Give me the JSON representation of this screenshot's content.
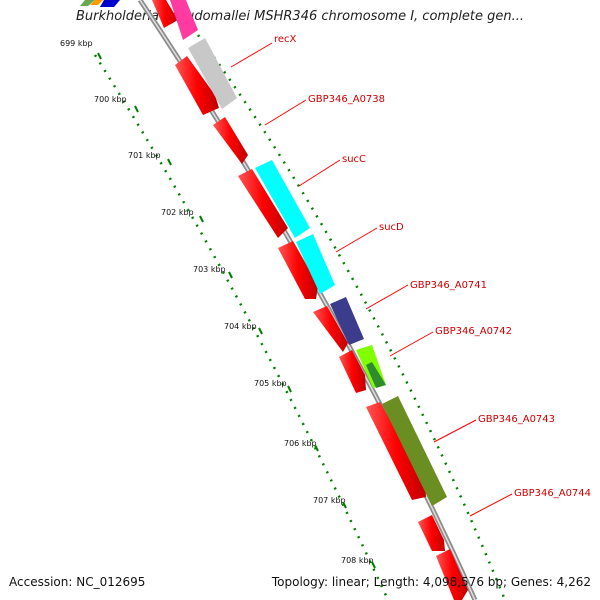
{
  "map": {
    "title": "Burkholderia pseudomallei MSHR346 chromosome I, complete gen...",
    "accession": "Accession: NC_012695",
    "summary": "Topology: linear; Length: 4,098,576 bp; Genes: 4,262"
  },
  "ruler": [
    {
      "label": "699 kbp"
    },
    {
      "label": "700 kbp"
    },
    {
      "label": "701 kbp"
    },
    {
      "label": "702 kbp"
    },
    {
      "label": "703 kbp"
    },
    {
      "label": "704 kbp"
    },
    {
      "label": "705 kbp"
    },
    {
      "label": "706 kbp"
    },
    {
      "label": "707 kbp"
    },
    {
      "label": "708 kbp"
    }
  ],
  "gene_labels": [
    {
      "name": "recX"
    },
    {
      "name": "GBP346_A0738"
    },
    {
      "name": "sucC"
    },
    {
      "name": "sucD"
    },
    {
      "name": "GBP346_A0741"
    },
    {
      "name": "GBP346_A0742"
    },
    {
      "name": "GBP346_A0743"
    },
    {
      "name": "GBP346_A0744"
    }
  ],
  "colors": {
    "forward_strand": "#ff0000",
    "gc_track": "#008000",
    "label_text": "#cc0000",
    "leader_line": "#ff0000",
    "backbone": "#a0a0a0",
    "recX": "#c8c8c8",
    "sucC": "#00ffff",
    "sucD": "#00ffff",
    "GBP346_A0741": "#3c3c8c",
    "GBP346_A0742": "#80ff00",
    "GBP346_A0743": "#6b8e23"
  }
}
